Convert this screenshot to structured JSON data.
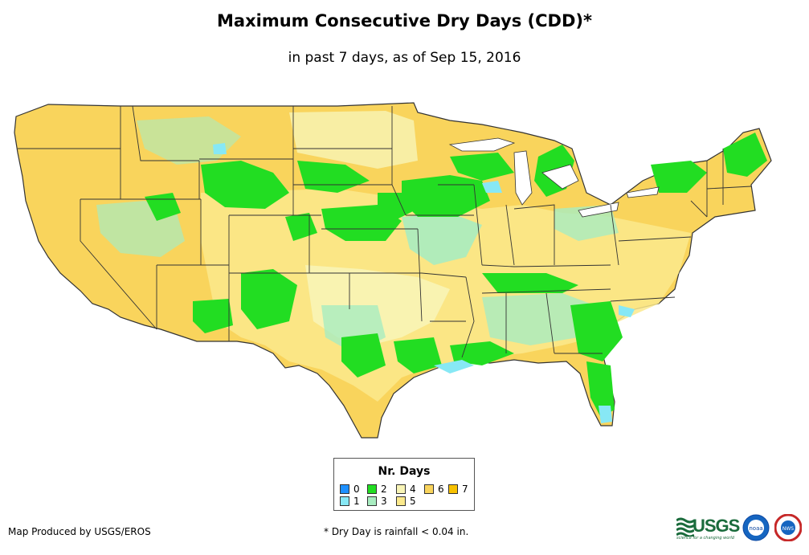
{
  "title": "Maximum Consecutive Dry Days (CDD)*",
  "subtitle": "in past 7 days, as of Sep 15, 2016",
  "legend": {
    "title": "Nr. Days",
    "items": [
      {
        "label": "0",
        "color": "#1e90ff"
      },
      {
        "label": "1",
        "color": "#87e8f5"
      },
      {
        "label": "2",
        "color": "#22dd22"
      },
      {
        "label": "3",
        "color": "#a8ecc0"
      },
      {
        "label": "4",
        "color": "#f8f4b6"
      },
      {
        "label": "5",
        "color": "#fbe98c"
      },
      {
        "label": "6",
        "color": "#f9d45c"
      },
      {
        "label": "7",
        "color": "#f7c100"
      }
    ]
  },
  "footer": {
    "credit": "Map Produced by USGS/EROS",
    "note": "* Dry Day is rainfall < 0.04 in."
  },
  "logos": {
    "usgs": "USGS",
    "usgs_tagline": "science for a changing world",
    "noaa": "noaa",
    "nws": "NWS"
  }
}
